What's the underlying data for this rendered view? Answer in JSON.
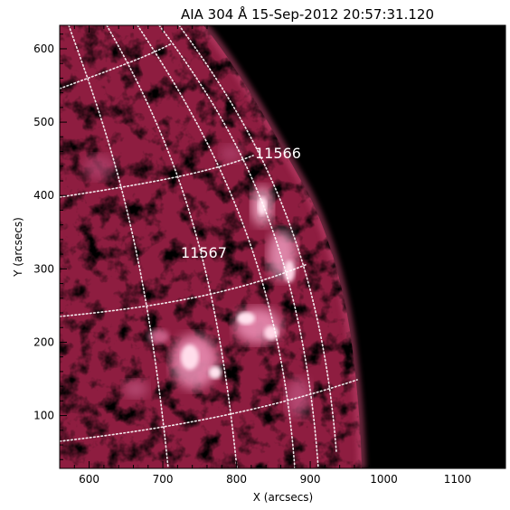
{
  "title": "AIA 304 Å 15-Sep-2012 20:57:31.120",
  "x_axis": {
    "label": "X (arcsecs)",
    "ticks": [
      600,
      700,
      800,
      900,
      1000,
      1100
    ],
    "range": [
      560,
      1165
    ]
  },
  "y_axis": {
    "label": "Y (arcsecs)",
    "ticks": [
      100,
      200,
      300,
      400,
      500,
      600
    ],
    "range": [
      28,
      632
    ]
  },
  "active_regions": [
    {
      "label": "11566",
      "x": 855,
      "y": 462
    },
    {
      "label": "11567",
      "x": 772,
      "y": 335
    }
  ],
  "colors": {
    "background": "#000000",
    "disk": "#8e1d40",
    "bright": "#ffd6e6",
    "grid": "#ffffff"
  }
}
